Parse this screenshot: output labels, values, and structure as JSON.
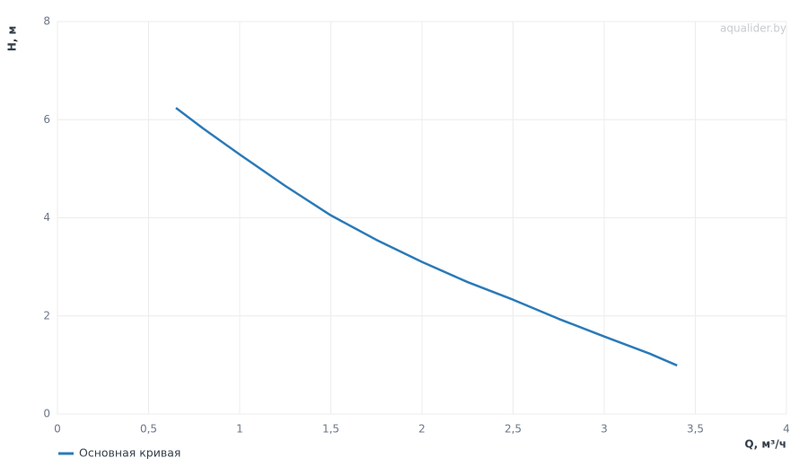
{
  "chart_data": {
    "type": "line",
    "xlabel": "Q, м³/ч",
    "ylabel": "H, м",
    "watermark": "aqualider.by",
    "x": [
      0.65,
      0.8,
      1,
      1.25,
      1.5,
      1.75,
      2,
      2.25,
      2.5,
      2.75,
      3,
      3.25,
      3.4
    ],
    "series": [
      {
        "name": "Основная кривая",
        "color": "#2a7ab8",
        "values": [
          6.24,
          5.82,
          5.29,
          4.65,
          4.05,
          3.55,
          3.1,
          2.69,
          2.33,
          1.94,
          1.58,
          1.23,
          0.99
        ]
      }
    ],
    "xlim": [
      0,
      4
    ],
    "xticks": [
      0,
      {
        "value": 0.5,
        "label": "0,5"
      },
      1,
      {
        "value": 1.5,
        "label": "1,5"
      },
      2,
      {
        "value": 2.5,
        "label": "2,5"
      },
      3,
      {
        "value": 3.5,
        "label": "3,5"
      },
      4
    ],
    "ylim": [
      0,
      8
    ],
    "yticks": [
      0,
      2,
      4,
      6,
      8
    ],
    "grid": true,
    "legend": "bottom-left"
  }
}
